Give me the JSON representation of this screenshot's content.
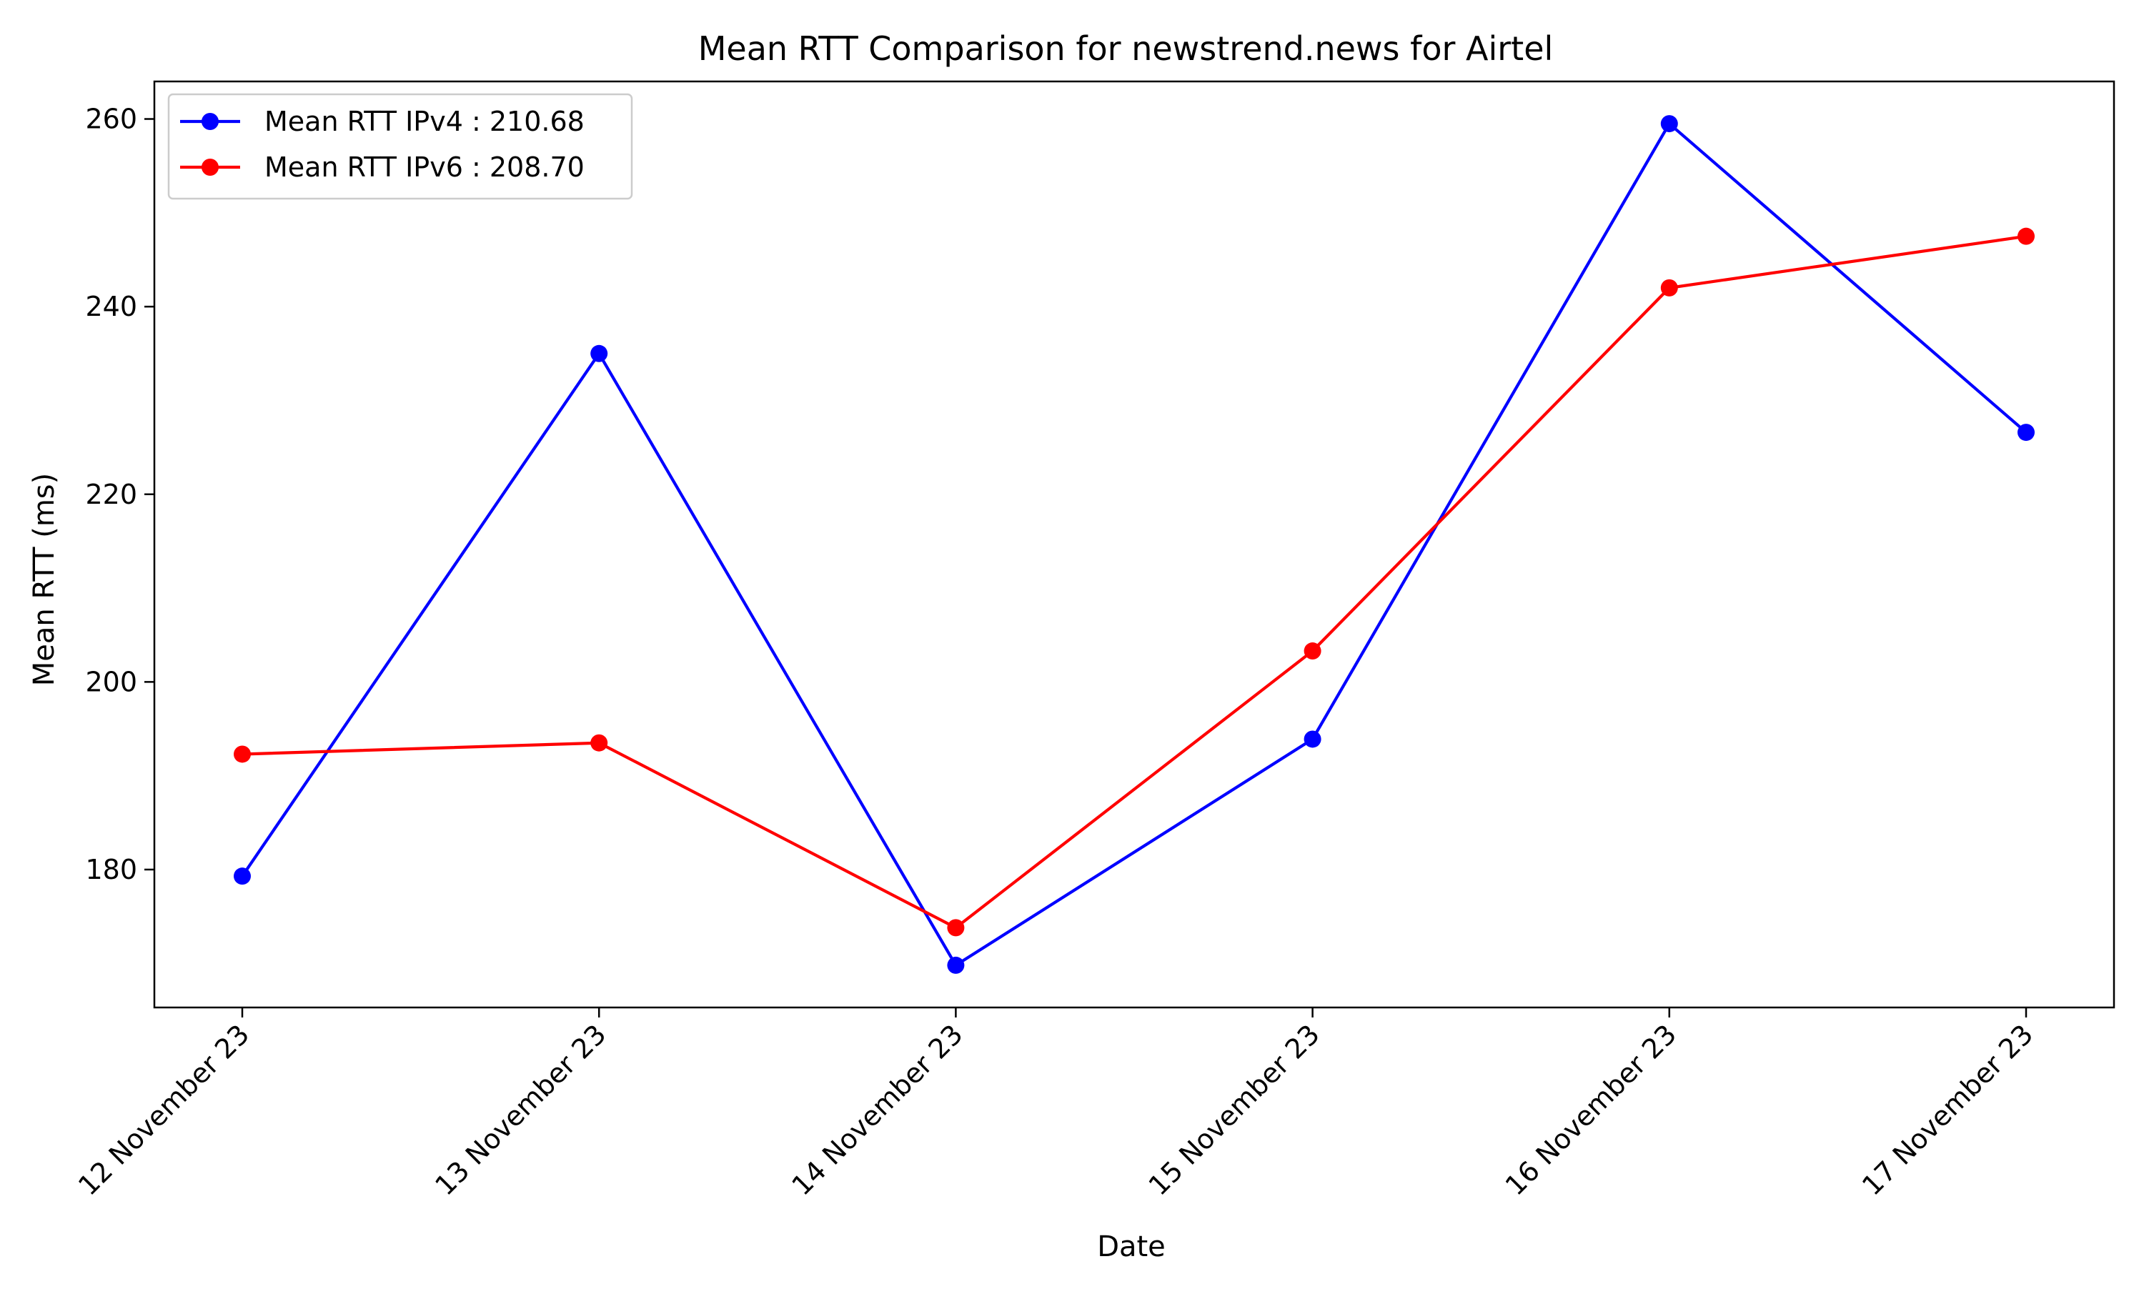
{
  "chart_data": {
    "type": "line",
    "title": "Mean RTT Comparison for newstrend.news for Airtel",
    "xlabel": "Date",
    "ylabel": "Mean RTT (ms)",
    "categories": [
      "12 November 23",
      "13 November 23",
      "14 November 23",
      "15 November 23",
      "16 November 23",
      "17 November 23"
    ],
    "series": [
      {
        "name": "Mean RTT IPv4 : 210.68",
        "color": "#0000ff",
        "values": [
          179.3,
          235.0,
          169.8,
          193.9,
          259.5,
          226.6
        ]
      },
      {
        "name": "Mean RTT IPv6 : 208.70",
        "color": "#ff0000",
        "values": [
          192.3,
          193.5,
          173.8,
          203.3,
          242.0,
          247.5
        ]
      }
    ],
    "ylim": [
      165.3,
      264.0
    ],
    "yticks": [
      "180",
      "200",
      "220",
      "240",
      "260"
    ],
    "ytick_values": [
      180,
      200,
      220,
      240,
      260
    ],
    "grid": false,
    "legend_position": "upper-left",
    "marker": "circle"
  }
}
